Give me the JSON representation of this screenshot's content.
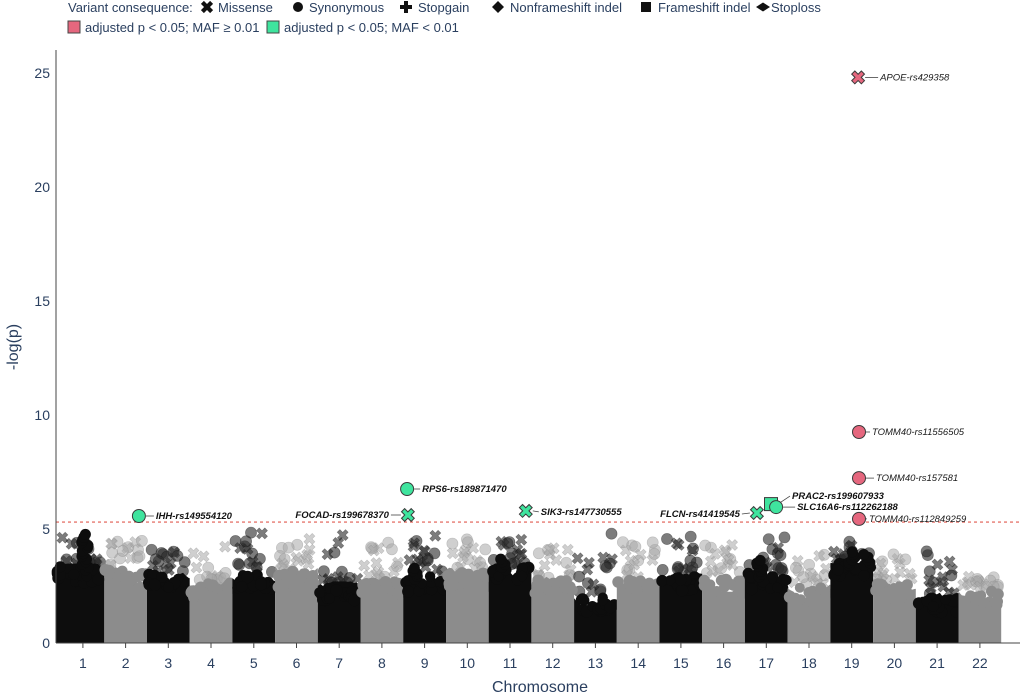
{
  "chart_data": {
    "type": "scatter",
    "xlabel": "Chromosome",
    "ylabel": "-log(p)",
    "categories": [
      "1",
      "2",
      "3",
      "4",
      "5",
      "6",
      "7",
      "8",
      "9",
      "10",
      "11",
      "12",
      "13",
      "14",
      "15",
      "16",
      "17",
      "18",
      "19",
      "20",
      "21",
      "22"
    ],
    "xlim": [
      0.37,
      22.94
    ],
    "ylim": [
      0,
      26
    ],
    "yticks": [
      0,
      5,
      10,
      15,
      20,
      25
    ],
    "grid": false,
    "significance_line": 5.3,
    "significance_line_color": "#e05a4f",
    "chromosome_colors": [
      "#0d0d0d",
      "#8c8c8c"
    ],
    "legend": {
      "placement": "top-left",
      "title": "Variant consequence:",
      "consequences": [
        {
          "label": "Missense",
          "icon": "x-icon"
        },
        {
          "label": "Synonymous",
          "icon": "circle-icon"
        },
        {
          "label": "Stopgain",
          "icon": "cross-icon"
        },
        {
          "label": "Nonframeshift indel",
          "icon": "diamond-icon"
        },
        {
          "label": "Frameshift indel",
          "icon": "square-icon"
        },
        {
          "label": "Stoploss",
          "icon": "wide-diamond-icon"
        }
      ],
      "groups": [
        {
          "label": "adjusted p < 0.05; MAF ≥ 0.01",
          "color": "#e5677e"
        },
        {
          "label": "adjusted p < 0.05; MAF < 0.01",
          "color": "#3fe49e"
        }
      ]
    },
    "highlighted": [
      {
        "label": "APOE-rs429358",
        "x": 19.15,
        "y": 24.8,
        "marker": "x-icon",
        "color": "#e5677e"
      },
      {
        "label": "TOMM40-rs11556505",
        "x": 19.17,
        "y": 9.25,
        "marker": "circle-icon",
        "color": "#e5677e"
      },
      {
        "label": "TOMM40-rs157581",
        "x": 19.17,
        "y": 7.23,
        "marker": "circle-icon",
        "color": "#e5677e"
      },
      {
        "label": "TOMM40-rs112849259",
        "x": 19.17,
        "y": 5.44,
        "marker": "circle-icon",
        "color": "#e5677e"
      },
      {
        "label": "PRAC2-rs199607933",
        "x": 17.11,
        "y": 6.09,
        "marker": "square-icon",
        "color": "#3fe49e"
      },
      {
        "label": "SLC16A6-rs112262188",
        "x": 17.23,
        "y": 5.96,
        "marker": "circle-icon",
        "color": "#3fe49e"
      },
      {
        "label": "FLCN-rs41419545",
        "x": 16.78,
        "y": 5.7,
        "marker": "x-icon",
        "color": "#3fe49e"
      },
      {
        "label": "SIK3-rs147730555",
        "x": 11.37,
        "y": 5.79,
        "marker": "x-icon",
        "color": "#3fe49e"
      },
      {
        "label": "RPS6-rs189871470",
        "x": 8.59,
        "y": 6.75,
        "marker": "circle-icon",
        "color": "#3fe49e"
      },
      {
        "label": "FOCAD-rs199678370",
        "x": 8.61,
        "y": 5.61,
        "marker": "x-icon",
        "color": "#3fe49e"
      },
      {
        "label": "IHH-rs149554120",
        "x": 2.31,
        "y": 5.57,
        "marker": "circle-icon",
        "color": "#3fe49e"
      }
    ]
  }
}
